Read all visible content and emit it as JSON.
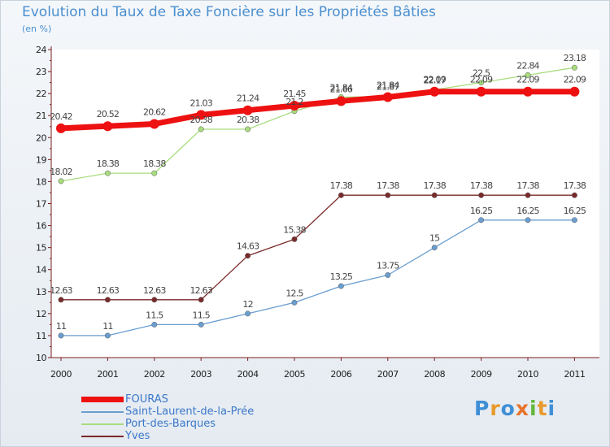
{
  "title": "Evolution du Taux de Taxe Foncière sur les Propriétés Bâties",
  "unit_label": "(en %)",
  "logo": {
    "text": "Proxiti",
    "letter_colors": [
      "#3f8fd6",
      "#e89a2c",
      "#3f8fd6",
      "#e8742c",
      "#64b83c",
      "#e89a2c",
      "#3f8fd6"
    ]
  },
  "colors": {
    "frame_border": "#c9d2dc",
    "axis": "#7a1f1f",
    "tick_text": "#222222",
    "value_text": "#444444"
  },
  "chart_data": {
    "type": "line",
    "title": "Evolution du Taux de Taxe Foncière sur les Propriétés Bâties",
    "ylabel": "(en %)",
    "xlabel": "",
    "x": [
      "2000",
      "2001",
      "2002",
      "2003",
      "2004",
      "2005",
      "2006",
      "2007",
      "2008",
      "2009",
      "2010",
      "2011"
    ],
    "yticks": [
      10,
      11,
      12,
      13,
      14,
      15,
      16,
      17,
      18,
      19,
      20,
      21,
      22,
      23,
      24
    ],
    "ylim": [
      10,
      24
    ],
    "grid": false,
    "legend_position": "bottom-left",
    "series": [
      {
        "name": "FOURAS",
        "color": "#ee1111",
        "values": [
          20.42,
          20.52,
          20.62,
          21.03,
          21.24,
          21.45,
          21.66,
          21.84,
          22.09,
          22.09,
          22.09,
          22.09
        ],
        "labels": [
          "20.42",
          "20.52",
          "20.62",
          "21.03",
          "21.24",
          "21.45",
          "21.66",
          "21.84",
          "22.09",
          "22.09",
          "22.09",
          "22.09"
        ]
      },
      {
        "name": "Saint-Laurent-de-la-Prée",
        "color": "#6a9ed0",
        "values": [
          11,
          11,
          11.5,
          11.5,
          12,
          12.5,
          13.25,
          13.75,
          15,
          16.25,
          16.25,
          16.25
        ],
        "labels": [
          "11",
          "11",
          "11.5",
          "11.5",
          "12",
          "12.5",
          "13.25",
          "13.75",
          "15",
          "16.25",
          "16.25",
          "16.25"
        ]
      },
      {
        "name": "Port-des-Barques",
        "color": "#a8dc7e",
        "values": [
          18.02,
          18.38,
          18.38,
          20.38,
          20.38,
          21.2,
          21.84,
          21.87,
          22.17,
          22.5,
          22.84,
          23.18
        ],
        "labels": [
          "18.02",
          "18.38",
          "18.38",
          "20.38",
          "20.38",
          "21.2",
          "21.84",
          "21.87",
          "22.17",
          "22.5",
          "22.84",
          "23.18"
        ]
      },
      {
        "name": "Yves",
        "color": "#7a2a2a",
        "values": [
          12.63,
          12.63,
          12.63,
          12.63,
          14.63,
          15.38,
          17.38,
          17.38,
          17.38,
          17.38,
          17.38,
          17.38
        ],
        "labels": [
          "12.63",
          "12.63",
          "12.63",
          "12.63",
          "14.63",
          "15.38",
          "17.38",
          "17.38",
          "17.38",
          "17.38",
          "17.38",
          "17.38"
        ]
      }
    ]
  }
}
